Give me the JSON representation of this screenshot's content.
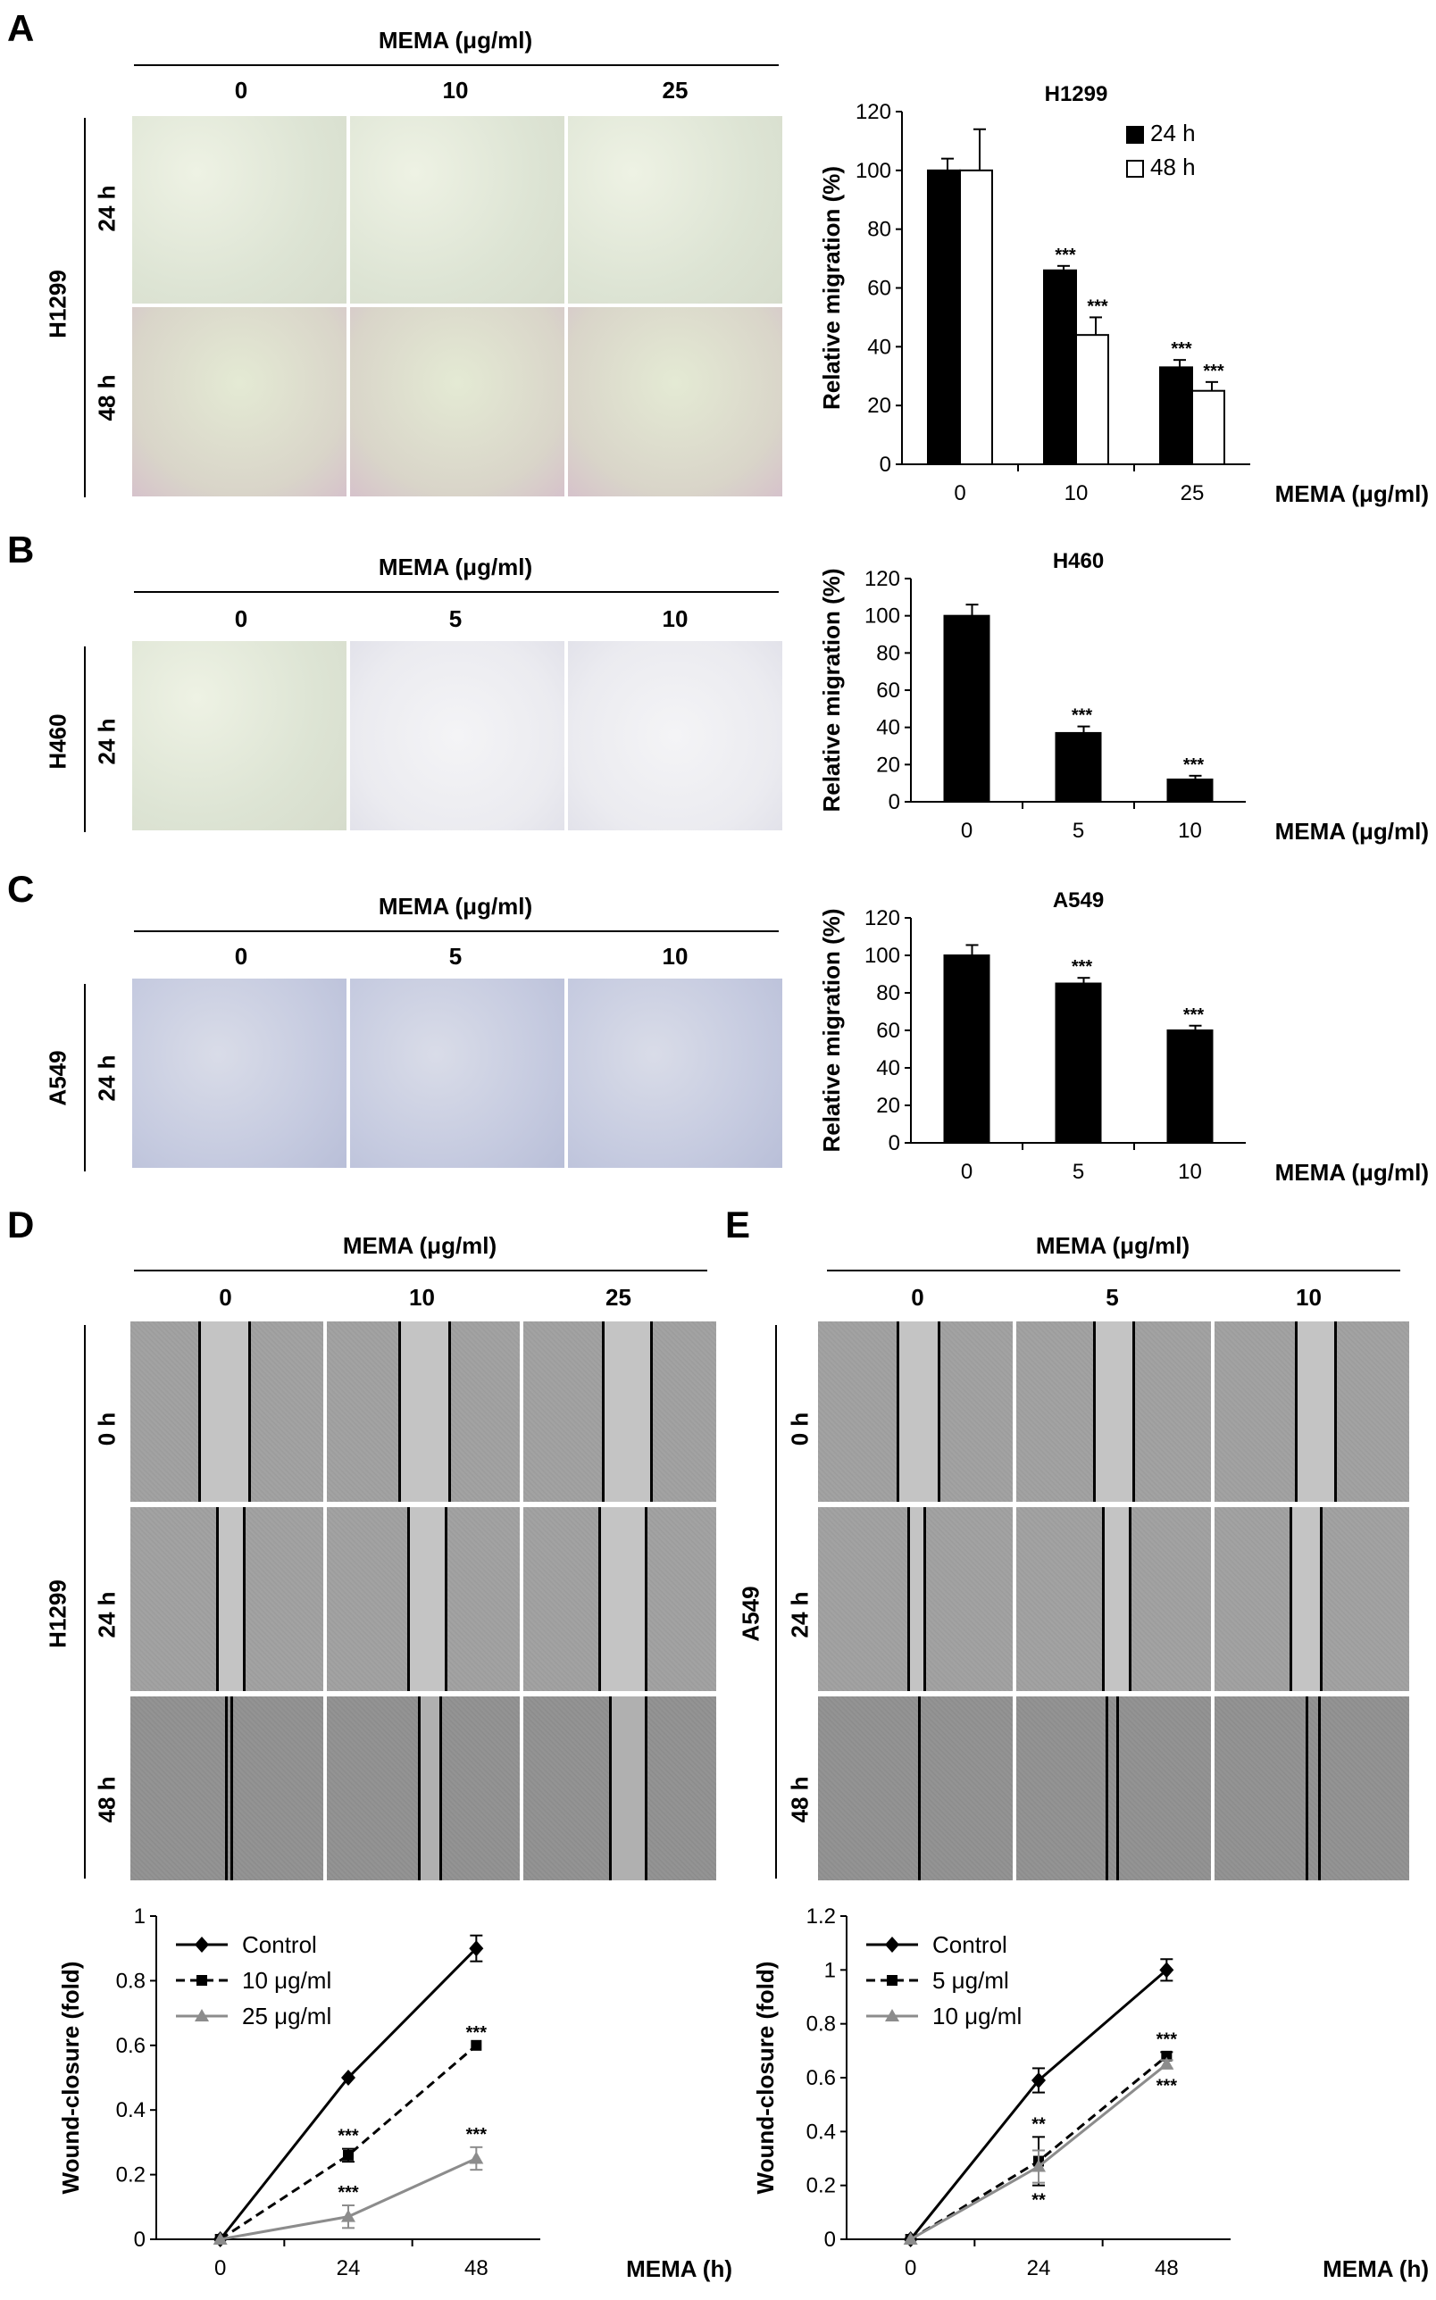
{
  "panels": {
    "A": {
      "letter": "A",
      "header": "MEMA (μg/ml)",
      "cols": [
        "0",
        "10",
        "25"
      ],
      "cell_line": "H1299",
      "rows": [
        "24 h",
        "48 h"
      ]
    },
    "B": {
      "letter": "B",
      "header": "MEMA (μg/ml)",
      "cols": [
        "0",
        "5",
        "10"
      ],
      "cell_line": "H460",
      "rows": [
        "24 h"
      ]
    },
    "C": {
      "letter": "C",
      "header": "MEMA (μg/ml)",
      "cols": [
        "0",
        "5",
        "10"
      ],
      "cell_line": "A549",
      "rows": [
        "24 h"
      ]
    },
    "D": {
      "letter": "D",
      "header": "MEMA (μg/ml)",
      "cols": [
        "0",
        "10",
        "25"
      ],
      "cell_line": "H1299",
      "rows": [
        "0 h",
        "24 h",
        "48 h"
      ]
    },
    "E": {
      "letter": "E",
      "header": "MEMA (μg/ml)",
      "cols": [
        "0",
        "5",
        "10"
      ],
      "cell_line": "A549",
      "rows": [
        "0 h",
        "24 h",
        "48 h"
      ]
    }
  },
  "chart_data": [
    {
      "id": "A",
      "type": "bar",
      "title": "H1299",
      "ylabel": "Relative migration (%)",
      "xlabel": "MEMA (μg/ml)",
      "ylim": [
        0,
        120
      ],
      "yticks": [
        "0",
        "20",
        "40",
        "60",
        "80",
        "100",
        "120"
      ],
      "categories": [
        "0",
        "10",
        "25"
      ],
      "series": [
        {
          "name": "24 h",
          "fill": "#000000",
          "values": [
            100,
            66,
            33
          ],
          "errors": [
            4,
            1.5,
            2.5
          ],
          "sig": [
            "",
            "***",
            "***"
          ]
        },
        {
          "name": "48 h",
          "fill": "#ffffff",
          "values": [
            100,
            44,
            25
          ],
          "errors": [
            14,
            6,
            3
          ],
          "sig": [
            "",
            "***",
            "***"
          ]
        }
      ],
      "legend": "top-right"
    },
    {
      "id": "B",
      "type": "bar",
      "title": "H460",
      "ylabel": "Relative migration (%)",
      "xlabel": "MEMA (μg/ml)",
      "ylim": [
        0,
        120
      ],
      "yticks": [
        "0",
        "20",
        "40",
        "60",
        "80",
        "100",
        "120"
      ],
      "categories": [
        "0",
        "5",
        "10"
      ],
      "series": [
        {
          "fill": "#000000",
          "values": [
            100,
            37,
            12
          ],
          "errors": [
            6,
            3.5,
            2
          ],
          "sig": [
            "",
            "***",
            "***"
          ]
        }
      ]
    },
    {
      "id": "C",
      "type": "bar",
      "title": "A549",
      "ylabel": "Relative migration (%)",
      "xlabel": "MEMA (μg/ml)",
      "ylim": [
        0,
        120
      ],
      "yticks": [
        "0",
        "20",
        "40",
        "60",
        "80",
        "100",
        "120"
      ],
      "categories": [
        "0",
        "5",
        "10"
      ],
      "series": [
        {
          "fill": "#000000",
          "values": [
            100,
            85,
            60
          ],
          "errors": [
            5.5,
            3,
            2.5
          ],
          "sig": [
            "",
            "***",
            "***"
          ]
        }
      ]
    },
    {
      "id": "D",
      "type": "line",
      "title": "",
      "ylabel": "Wound-closure (fold)",
      "xlabel": "MEMA (h)",
      "ylim": [
        0,
        1
      ],
      "yticks": [
        "0",
        "0.2",
        "0.4",
        "0.6",
        "0.8",
        "1"
      ],
      "x": [
        "0",
        "24",
        "48"
      ],
      "series": [
        {
          "name": "Control",
          "color": "#000000",
          "dash": "",
          "marker": "diamond",
          "values": [
            0,
            0.5,
            0.9
          ],
          "errors": [
            0,
            0,
            0.04
          ],
          "sig": [
            "",
            "",
            ""
          ]
        },
        {
          "name": "10 μg/ml",
          "color": "#000000",
          "dash": "10,6",
          "marker": "square",
          "values": [
            0,
            0.26,
            0.6
          ],
          "errors": [
            0,
            0.02,
            0
          ],
          "sig": [
            "",
            "***",
            "***"
          ]
        },
        {
          "name": "25 μg/ml",
          "color": "#8c8c8c",
          "dash": "",
          "marker": "triangle",
          "values": [
            0,
            0.07,
            0.25
          ],
          "errors": [
            0,
            0.035,
            0.035
          ],
          "sig": [
            "",
            "***",
            "***"
          ]
        }
      ],
      "legend": "top-left"
    },
    {
      "id": "E",
      "type": "line",
      "title": "",
      "ylabel": "Wound-closure (fold)",
      "xlabel": "MEMA (h)",
      "ylim": [
        0,
        1.2
      ],
      "yticks": [
        "0",
        "0.2",
        "0.4",
        "0.6",
        "0.8",
        "1",
        "1.2"
      ],
      "x": [
        "0",
        "24",
        "48"
      ],
      "series": [
        {
          "name": "Control",
          "color": "#000000",
          "dash": "",
          "marker": "diamond",
          "values": [
            0,
            0.59,
            1.0
          ],
          "errors": [
            0,
            0.045,
            0.04
          ],
          "sig": [
            "",
            "",
            ""
          ]
        },
        {
          "name": "5 μg/ml",
          "color": "#000000",
          "dash": "10,6",
          "marker": "square",
          "values": [
            0,
            0.29,
            0.68
          ],
          "errors": [
            0,
            0.09,
            0.015
          ],
          "sig": [
            "",
            "**",
            "***"
          ]
        },
        {
          "name": "10 μg/ml",
          "color": "#8c8c8c",
          "dash": "",
          "marker": "triangle",
          "values": [
            0,
            0.27,
            0.65
          ],
          "errors": [
            0,
            0.06,
            0.015
          ],
          "sig": [
            "",
            "**",
            "***"
          ]
        }
      ],
      "legend": "top-left"
    }
  ]
}
